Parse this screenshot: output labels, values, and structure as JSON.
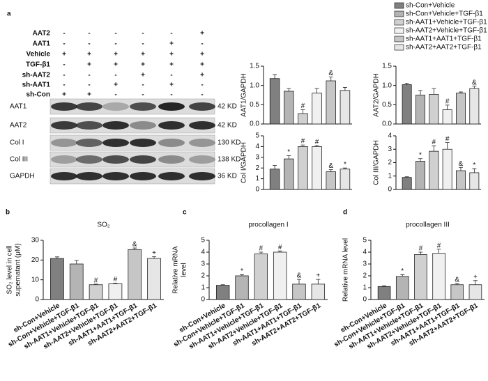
{
  "panels": [
    "a",
    "b",
    "c",
    "d"
  ],
  "blot": {
    "conditions": [
      {
        "label": "AAT2",
        "values": [
          "-",
          "-",
          "-",
          "-",
          "-",
          "+"
        ]
      },
      {
        "label": "AAT1",
        "values": [
          "-",
          "-",
          "-",
          "-",
          "+",
          "-"
        ]
      },
      {
        "label": "Vehicle",
        "values": [
          "+",
          "+",
          "+",
          "+",
          "+",
          "+"
        ]
      },
      {
        "label": "TGF-β1",
        "values": [
          "-",
          "+",
          "+",
          "+",
          "+",
          "+"
        ]
      },
      {
        "label": "sh-AAT2",
        "values": [
          "-",
          "-",
          "-",
          "+",
          "-",
          "+"
        ]
      },
      {
        "label": "sh-AAT1",
        "values": [
          "-",
          "-",
          "+",
          "-",
          "+",
          "-"
        ]
      },
      {
        "label": "sh-Con",
        "values": [
          "+",
          "+",
          "-",
          "-",
          "-",
          "-"
        ]
      }
    ],
    "bands": [
      {
        "label": "AAT1",
        "size": "42 KD"
      },
      {
        "label": "AAT2",
        "size": "42 KD"
      },
      {
        "label": "Col I",
        "size": "130 KD"
      },
      {
        "label": "Col III",
        "size": "138 KD"
      },
      {
        "label": "GAPDH",
        "size": "36 KD"
      }
    ]
  },
  "legend": {
    "series": [
      {
        "name": "sh-Con+Vehicle",
        "color": "#808080"
      },
      {
        "name": "sh-Con+Vehicle+TGF-β1",
        "color": "#b4b4b4"
      },
      {
        "name": "sh-AAT1+Vehicle+TGF-β1",
        "color": "#d0d0d0"
      },
      {
        "name": "sh-AAT2+Vehicle+TGF-β1",
        "color": "#f0f0f0"
      },
      {
        "name": "sh-AAT1+AAT1+TGF-β1",
        "color": "#c6c6c6"
      },
      {
        "name": "sh-AAT2+AAT2+TGF-β1",
        "color": "#e6e6e6"
      }
    ]
  },
  "chart_data": [
    {
      "type": "bar",
      "ylabel": [
        "AAT1/GAPDH"
      ],
      "values": [
        1.18,
        0.85,
        0.27,
        0.8,
        1.12,
        0.87
      ],
      "errors": [
        0.1,
        0.07,
        0.1,
        0.12,
        0.1,
        0.08
      ],
      "markers": [
        null,
        null,
        "#",
        null,
        "&",
        null
      ],
      "ylim": [
        0,
        1.5
      ],
      "yticks": [
        {
          "value": 0,
          "label": "0.0"
        },
        {
          "value": 0.5,
          "label": "0.5"
        },
        {
          "value": 1,
          "label": "1.0"
        },
        {
          "value": 1.5,
          "label": "1.5"
        }
      ]
    },
    {
      "type": "bar",
      "ylabel": [
        "AAT2/GAPDH"
      ],
      "values": [
        1.02,
        0.75,
        0.77,
        0.37,
        0.8,
        0.92
      ],
      "errors": [
        0.04,
        0.12,
        0.15,
        0.12,
        0.03,
        0.06
      ],
      "markers": [
        null,
        null,
        null,
        "#",
        null,
        "&"
      ],
      "ylim": [
        0,
        1.5
      ],
      "yticks": [
        {
          "value": 0,
          "label": "0.0"
        },
        {
          "value": 0.5,
          "label": "0.5"
        },
        {
          "value": 1,
          "label": "1.0"
        },
        {
          "value": 1.5,
          "label": "1.5"
        }
      ]
    },
    {
      "type": "bar",
      "ylabel": [
        "Col I/GAPDH"
      ],
      "values": [
        1.9,
        2.85,
        4.0,
        4.0,
        1.65,
        1.9
      ],
      "errors": [
        0.35,
        0.3,
        0.15,
        0.1,
        0.2,
        0.1
      ],
      "markers": [
        null,
        "*",
        "#",
        "#",
        "&",
        "*"
      ],
      "ylim": [
        0,
        5
      ],
      "yticks": [
        0,
        1,
        2,
        3,
        4,
        5
      ]
    },
    {
      "type": "bar",
      "ylabel": [
        "Col III/GAPDH"
      ],
      "values": [
        0.9,
        2.1,
        2.85,
        3.0,
        1.4,
        1.25
      ],
      "errors": [
        0.05,
        0.2,
        0.4,
        0.5,
        0.25,
        0.3
      ],
      "markers": [
        null,
        "*",
        "#",
        "#",
        "&",
        "*"
      ],
      "ylim": [
        0,
        4
      ],
      "yticks": [
        0,
        1,
        2,
        3,
        4
      ]
    },
    {
      "type": "bar",
      "title": "SO₂",
      "ylabel": [
        "SO₂ level in cell",
        "supernatant (μM)"
      ],
      "categories": [
        "sh-Con+Vehicle",
        "sh-Con+Vehicle+TGF-β1",
        "sh-AAT1+Vehicle+TGF-β1",
        "sh-AAT2+Vehicle+TGF-β1",
        "sh-AAT1+AAT1+TGF-β1",
        "sh-AAT2+AAT2+TGF-β1"
      ],
      "values": [
        20.8,
        18,
        7.5,
        8,
        25.3,
        20.8
      ],
      "errors": [
        0.8,
        1.8,
        0.3,
        0.3,
        0.8,
        0.9
      ],
      "markers": [
        null,
        null,
        "#",
        "#",
        "&",
        "+"
      ],
      "ylim": [
        0,
        30
      ],
      "yticks": [
        0,
        10,
        20,
        30
      ]
    },
    {
      "type": "bar",
      "title": "procollagen I",
      "ylabel": [
        "Relative mRNA",
        "level"
      ],
      "categories": [
        "sh-Con+Vehicle",
        "sh-Con+Vehicle+TGF-β1",
        "sh-AAT1+Vehicle+TGF-β1",
        "sh-AAT2+Vehicle+TGF-β1",
        "sh-AAT1+AAT1+TGF-β1",
        "sh-AAT2+AAT2+TGF-β1"
      ],
      "values": [
        1.2,
        2.0,
        3.85,
        4.0,
        1.3,
        1.3
      ],
      "errors": [
        0.05,
        0.1,
        0.15,
        0.1,
        0.4,
        0.4
      ],
      "markers": [
        null,
        "*",
        "#",
        "#",
        "&",
        "+"
      ],
      "ylim": [
        0,
        5
      ],
      "yticks": [
        0,
        1,
        2,
        3,
        4,
        5
      ]
    },
    {
      "type": "bar",
      "title": "procollagen III",
      "ylabel": [
        "Relative mRNA level"
      ],
      "categories": [
        "sh-Con+Vehicle",
        "sh-Con+Vehicle+TGF-β1",
        "sh-AAT1+Vehicle+TGF-β1",
        "sh-AAT2+Vehicle+TGF-β1",
        "sh-AAT1+AAT1+TGF-β1",
        "sh-AAT2+AAT2+TGF-β1"
      ],
      "values": [
        1.1,
        1.95,
        3.8,
        3.9,
        1.25,
        1.25
      ],
      "errors": [
        0.05,
        0.15,
        0.2,
        0.35,
        0.1,
        0.35
      ],
      "markers": [
        null,
        "*",
        "#",
        "#",
        "&",
        "+"
      ],
      "ylim": [
        0,
        5
      ],
      "yticks": [
        0,
        1,
        2,
        3,
        4,
        5
      ]
    }
  ]
}
